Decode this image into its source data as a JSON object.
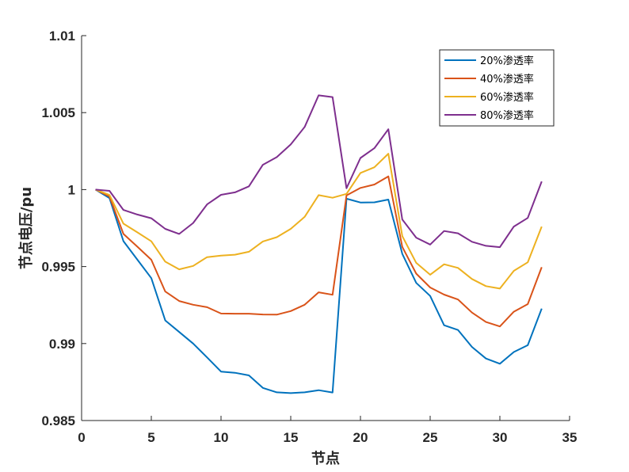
{
  "chart_data": {
    "type": "line",
    "xlabel": "节点",
    "ylabel": "节点电压/pu",
    "xlim": [
      0,
      35
    ],
    "ylim": [
      0.985,
      1.01
    ],
    "xticks": [
      0,
      5,
      10,
      15,
      20,
      25,
      30,
      35
    ],
    "xtick_labels": [
      "0",
      "5",
      "10",
      "15",
      "20",
      "25",
      "30",
      "35"
    ],
    "yticks": [
      0.985,
      0.99,
      0.995,
      1.0,
      1.005,
      1.01
    ],
    "ytick_labels": [
      "0.985",
      "0.99",
      "0.995",
      "1",
      "1.005",
      "1.01"
    ],
    "legend_position": "top-right",
    "x": [
      1,
      2,
      3,
      4,
      5,
      6,
      7,
      8,
      9,
      10,
      11,
      12,
      13,
      14,
      15,
      16,
      17,
      18,
      19,
      20,
      21,
      22,
      23,
      24,
      25,
      26,
      27,
      28,
      29,
      30,
      31,
      32,
      33
    ],
    "series": [
      {
        "name": "20%渗透率",
        "color": "#0072BD",
        "values": [
          1.0,
          0.99945,
          0.99665,
          0.99545,
          0.99425,
          0.9915,
          0.99075,
          0.99,
          0.9891,
          0.98818,
          0.9881,
          0.98793,
          0.98712,
          0.98683,
          0.98678,
          0.98683,
          0.98697,
          0.98682,
          0.99941,
          0.99916,
          0.99917,
          0.99935,
          0.99583,
          0.99394,
          0.99309,
          0.99119,
          0.99088,
          0.98978,
          0.98903,
          0.98869,
          0.98945,
          0.98989,
          0.99227
        ]
      },
      {
        "name": "40%渗透率",
        "color": "#D95319",
        "values": [
          1.0,
          0.99955,
          0.99712,
          0.99629,
          0.99544,
          0.99338,
          0.99276,
          0.99252,
          0.99236,
          0.99195,
          0.99194,
          0.99194,
          0.99189,
          0.99188,
          0.99211,
          0.99252,
          0.99333,
          0.99317,
          0.99962,
          1.00011,
          1.00033,
          1.00086,
          0.99628,
          0.99454,
          0.99364,
          0.99318,
          0.99286,
          0.99201,
          0.9914,
          0.99111,
          0.99207,
          0.99256,
          0.99496
        ]
      },
      {
        "name": "60%渗透率",
        "color": "#EDB120",
        "values": [
          1.0,
          0.99965,
          0.99779,
          0.99722,
          0.99664,
          0.99532,
          0.99482,
          0.99504,
          0.99561,
          0.99571,
          0.99577,
          0.99596,
          0.99663,
          0.99691,
          0.99745,
          0.99823,
          0.99964,
          0.99947,
          0.99972,
          1.00108,
          1.00145,
          1.00233,
          0.99698,
          0.99524,
          0.99447,
          0.99515,
          0.99491,
          0.99419,
          0.99373,
          0.99357,
          0.99472,
          0.99528,
          0.9976
        ]
      },
      {
        "name": "80%渗透率",
        "color": "#7E2F8E",
        "values": [
          1.0,
          0.99992,
          0.99868,
          0.99838,
          0.99814,
          0.99745,
          0.99712,
          0.99783,
          0.99904,
          0.99966,
          0.99982,
          1.00021,
          1.00161,
          1.00211,
          1.00293,
          1.00407,
          1.00612,
          1.00601,
          1.00009,
          1.00205,
          1.00269,
          1.00392,
          0.99806,
          0.99688,
          0.99643,
          0.99731,
          0.99716,
          0.99661,
          0.99635,
          0.99626,
          0.9976,
          0.99816,
          1.00053
        ]
      }
    ]
  }
}
